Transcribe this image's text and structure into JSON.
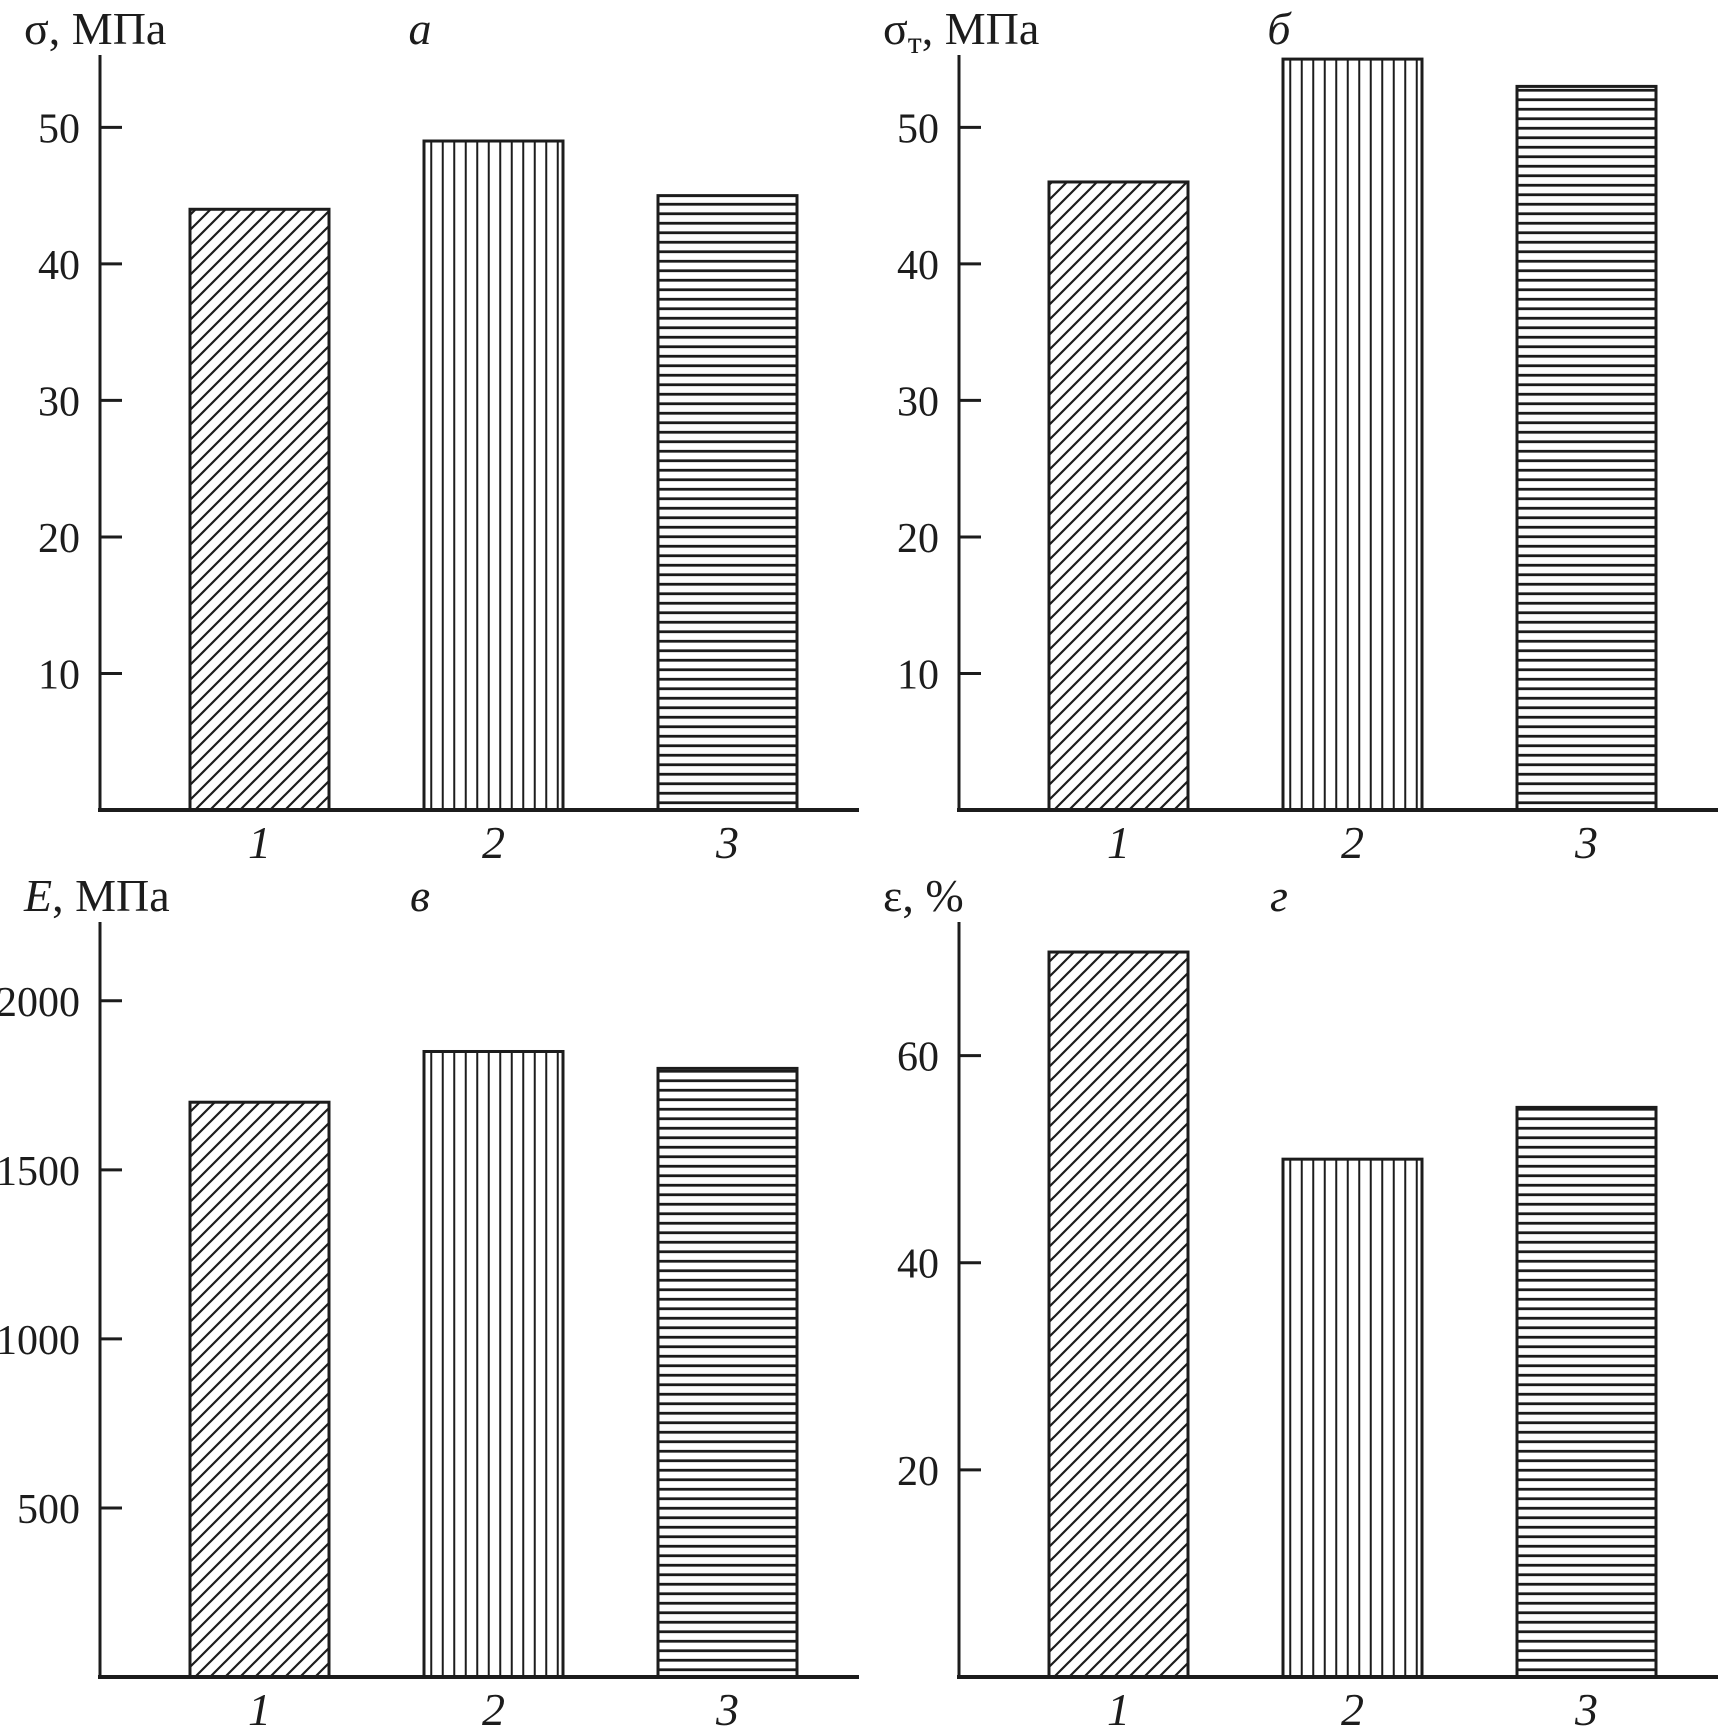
{
  "figure": {
    "background": "#ffffff",
    "ink": "#1c1c1c",
    "description": "Four-panel hatched bar chart figure (panels a, b, v, g) comparing three materials 1, 2, 3"
  },
  "hatch_legend": {
    "bar1": "diagonal-hatch",
    "bar2": "vertical-hatch",
    "bar3": "horizontal-hatch"
  },
  "chart_data": [
    {
      "type": "bar",
      "panel_label": "а",
      "ylabel_text": "σ, МПа",
      "ylabel_parts": [
        {
          "text": "σ, МПа",
          "style": "normal"
        }
      ],
      "xlabel": "",
      "categories": [
        "1",
        "2",
        "3"
      ],
      "values": [
        44,
        49,
        45
      ],
      "yticks": [
        10,
        20,
        30,
        40,
        50
      ],
      "ylim": [
        0,
        55.3
      ],
      "grid": false,
      "legend_position": "none",
      "bar_hatches": [
        "diagonal",
        "vertical",
        "horizontal"
      ]
    },
    {
      "type": "bar",
      "panel_label": "б",
      "ylabel_text": "σт, МПа",
      "ylabel_parts": [
        {
          "text": "σ",
          "style": "normal"
        },
        {
          "text": "т",
          "style": "sub"
        },
        {
          "text": ", МПа",
          "style": "normal"
        }
      ],
      "xlabel": "",
      "categories": [
        "1",
        "2",
        "3"
      ],
      "values": [
        46,
        55,
        53
      ],
      "yticks": [
        10,
        20,
        30,
        40,
        50
      ],
      "ylim": [
        0,
        55.3
      ],
      "grid": false,
      "legend_position": "none",
      "bar_hatches": [
        "diagonal",
        "vertical",
        "horizontal"
      ]
    },
    {
      "type": "bar",
      "panel_label": "в",
      "ylabel_text": "E, МПа",
      "ylabel_parts": [
        {
          "text": "E",
          "style": "italic"
        },
        {
          "text": ", МПа",
          "style": "normal"
        }
      ],
      "xlabel": "",
      "categories": [
        "1",
        "2",
        "3"
      ],
      "values": [
        1700,
        1850,
        1800
      ],
      "yticks": [
        500,
        1000,
        1500,
        2000
      ],
      "ylim": [
        0,
        2233
      ],
      "grid": false,
      "legend_position": "none",
      "bar_hatches": [
        "diagonal",
        "vertical",
        "horizontal"
      ]
    },
    {
      "type": "bar",
      "panel_label": "г",
      "ylabel_text": "ε, %",
      "ylabel_parts": [
        {
          "text": "ε, %",
          "style": "normal"
        }
      ],
      "xlabel": "",
      "categories": [
        "1",
        "2",
        "3"
      ],
      "values": [
        70,
        50,
        55
      ],
      "yticks": [
        20,
        40,
        60
      ],
      "ylim": [
        0,
        72.9
      ],
      "grid": false,
      "legend_position": "none",
      "bar_hatches": [
        "diagonal",
        "vertical",
        "horizontal"
      ]
    }
  ]
}
